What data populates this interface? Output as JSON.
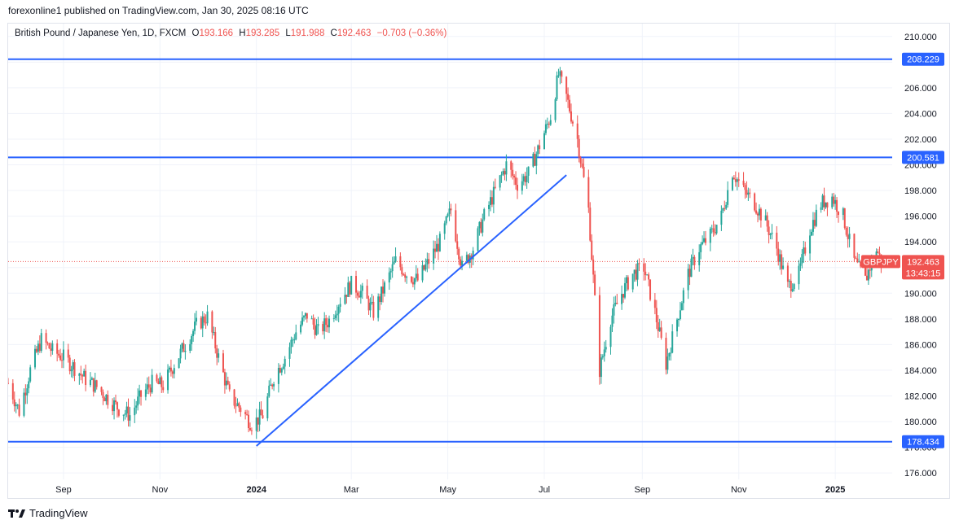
{
  "header": {
    "publisher": "forexonline1 published on TradingView.com, Jan 30, 2025 08:16 UTC"
  },
  "legend": {
    "symbol": "British Pound / Japanese Yen, 1D, FXCM",
    "o_label": "O",
    "o_value": "193.166",
    "h_label": "H",
    "h_value": "193.285",
    "l_label": "L",
    "l_value": "191.988",
    "c_label": "C",
    "c_value": "192.463",
    "change": "−0.703 (−0.36%)"
  },
  "footer": {
    "brand": "TradingView"
  },
  "colors": {
    "up": "#26a69a",
    "down": "#ef5350",
    "line": "#2962ff",
    "grid": "#f0f3fa",
    "text": "#131722"
  },
  "chart_data": {
    "type": "candlestick",
    "instrument": "GBPJPY",
    "interval": "1D",
    "ylim": [
      175.5,
      211.0
    ],
    "y_ticks": [
      "176.000",
      "178.000",
      "180.000",
      "182.000",
      "184.000",
      "186.000",
      "188.000",
      "190.000",
      "192.000",
      "194.000",
      "196.000",
      "198.000",
      "200.000",
      "202.000",
      "204.000",
      "206.000",
      "208.000",
      "210.000"
    ],
    "x_ticks": [
      {
        "label": "Sep",
        "date": "2023-09-01",
        "bold": false
      },
      {
        "label": "Nov",
        "date": "2023-11-01",
        "bold": false
      },
      {
        "label": "2024",
        "date": "2024-01-01",
        "bold": true
      },
      {
        "label": "Mar",
        "date": "2024-03-01",
        "bold": false
      },
      {
        "label": "May",
        "date": "2024-05-01",
        "bold": false
      },
      {
        "label": "Jul",
        "date": "2024-07-01",
        "bold": false
      },
      {
        "label": "Sep",
        "date": "2024-09-01",
        "bold": false
      },
      {
        "label": "Nov",
        "date": "2024-11-01",
        "bold": false
      },
      {
        "label": "2025",
        "date": "2025-01-01",
        "bold": true
      }
    ],
    "x_range": [
      "2023-07-28",
      "2025-02-06"
    ],
    "horizontal_lines": [
      {
        "value": 208.229,
        "label": "208.229"
      },
      {
        "value": 200.581,
        "label": "200.581"
      },
      {
        "value": 178.434,
        "label": "178.434"
      }
    ],
    "trendline": {
      "from": {
        "date": "2024-01-01",
        "price": 178.1
      },
      "to": {
        "date": "2024-07-15",
        "price": 199.2
      }
    },
    "last_price": {
      "value": 192.463,
      "label": "192.463",
      "symbol": "GBPJPY",
      "countdown": "13:43:15"
    },
    "price_path": [
      [
        "2023-07-28",
        183.0
      ],
      [
        "2023-08-04",
        180.8
      ],
      [
        "2023-08-11",
        184.0
      ],
      [
        "2023-08-18",
        186.4
      ],
      [
        "2023-08-25",
        185.5
      ],
      [
        "2023-09-01",
        185.0
      ],
      [
        "2023-09-08",
        184.2
      ],
      [
        "2023-09-15",
        183.3
      ],
      [
        "2023-09-22",
        182.7
      ],
      [
        "2023-09-29",
        181.8
      ],
      [
        "2023-10-06",
        181.0
      ],
      [
        "2023-10-13",
        180.5
      ],
      [
        "2023-10-20",
        182.0
      ],
      [
        "2023-10-27",
        183.0
      ],
      [
        "2023-11-03",
        182.8
      ],
      [
        "2023-11-10",
        184.5
      ],
      [
        "2023-11-17",
        186.0
      ],
      [
        "2023-11-24",
        187.5
      ],
      [
        "2023-12-01",
        188.2
      ],
      [
        "2023-12-08",
        185.0
      ],
      [
        "2023-12-15",
        182.0
      ],
      [
        "2023-12-22",
        181.0
      ],
      [
        "2023-12-29",
        179.8
      ],
      [
        "2024-01-05",
        180.5
      ],
      [
        "2024-01-12",
        183.5
      ],
      [
        "2024-01-19",
        185.0
      ],
      [
        "2024-01-26",
        187.0
      ],
      [
        "2024-02-02",
        188.3
      ],
      [
        "2024-02-09",
        187.0
      ],
      [
        "2024-02-16",
        187.9
      ],
      [
        "2024-02-23",
        189.5
      ],
      [
        "2024-03-01",
        190.7
      ],
      [
        "2024-03-08",
        190.0
      ],
      [
        "2024-03-15",
        188.5
      ],
      [
        "2024-03-22",
        190.5
      ],
      [
        "2024-03-29",
        192.5
      ],
      [
        "2024-04-05",
        191.5
      ],
      [
        "2024-04-12",
        191.0
      ],
      [
        "2024-04-19",
        192.5
      ],
      [
        "2024-04-26",
        194.0
      ],
      [
        "2024-05-03",
        196.5
      ],
      [
        "2024-05-10",
        192.0
      ],
      [
        "2024-05-17",
        193.5
      ],
      [
        "2024-05-24",
        196.0
      ],
      [
        "2024-05-31",
        198.0
      ],
      [
        "2024-06-07",
        200.0
      ],
      [
        "2024-06-14",
        198.5
      ],
      [
        "2024-06-21",
        199.3
      ],
      [
        "2024-06-28",
        201.5
      ],
      [
        "2024-07-05",
        203.8
      ],
      [
        "2024-07-10",
        207.0
      ],
      [
        "2024-07-15",
        205.3
      ],
      [
        "2024-07-22",
        202.0
      ],
      [
        "2024-07-29",
        196.5
      ],
      [
        "2024-08-05",
        184.0
      ],
      [
        "2024-08-12",
        188.0
      ],
      [
        "2024-08-19",
        190.0
      ],
      [
        "2024-08-26",
        191.5
      ],
      [
        "2024-09-02",
        192.0
      ],
      [
        "2024-09-09",
        188.5
      ],
      [
        "2024-09-16",
        184.5
      ],
      [
        "2024-09-23",
        188.0
      ],
      [
        "2024-09-30",
        191.5
      ],
      [
        "2024-10-07",
        193.5
      ],
      [
        "2024-10-14",
        194.5
      ],
      [
        "2024-10-21",
        196.0
      ],
      [
        "2024-10-28",
        199.5
      ],
      [
        "2024-11-04",
        198.0
      ],
      [
        "2024-11-11",
        197.0
      ],
      [
        "2024-11-18",
        195.5
      ],
      [
        "2024-11-25",
        193.5
      ],
      [
        "2024-12-02",
        190.5
      ],
      [
        "2024-12-09",
        191.5
      ],
      [
        "2024-12-16",
        195.0
      ],
      [
        "2024-12-23",
        197.0
      ],
      [
        "2024-12-30",
        197.5
      ],
      [
        "2025-01-06",
        196.0
      ],
      [
        "2025-01-13",
        192.5
      ],
      [
        "2025-01-20",
        191.0
      ],
      [
        "2025-01-27",
        193.5
      ],
      [
        "2025-01-30",
        192.463
      ]
    ]
  }
}
